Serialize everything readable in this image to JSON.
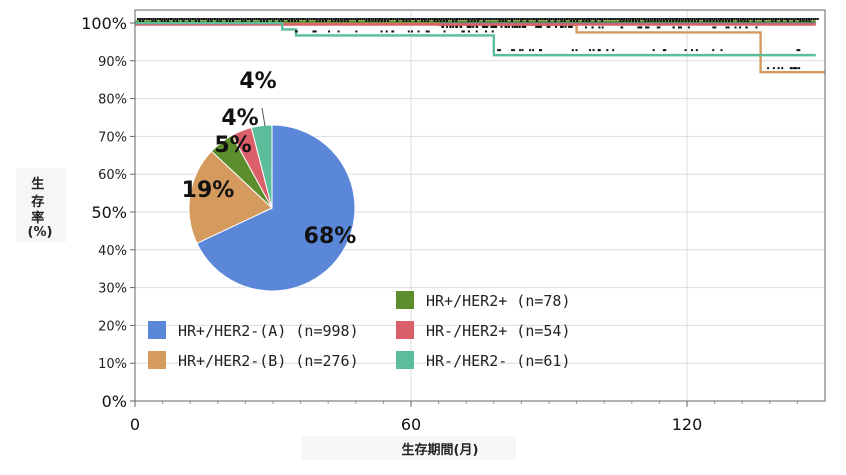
{
  "chart_data": [
    {
      "type": "line",
      "title": "",
      "xlabel": "生存期間(月)",
      "ylabel": "生存率(%)",
      "xlim": [
        0,
        150
      ],
      "ylim": [
        0,
        100
      ],
      "x_ticks": [
        0,
        60,
        120
      ],
      "y_ticks": [
        {
          "value": 0,
          "label": "0%"
        },
        {
          "value": 10,
          "label": "10%"
        },
        {
          "value": 20,
          "label": "20%"
        },
        {
          "value": 30,
          "label": "30%"
        },
        {
          "value": 40,
          "label": "40%"
        },
        {
          "value": 50,
          "label": "50%"
        },
        {
          "value": 60,
          "label": "60%"
        },
        {
          "value": 70,
          "label": "70%"
        },
        {
          "value": 80,
          "label": "80%"
        },
        {
          "value": 90,
          "label": "90%"
        },
        {
          "value": 100,
          "label": "100%"
        }
      ],
      "grid": true,
      "series": [
        {
          "name": "HR+/HER2-(A) (n=998)",
          "color": "#5b87d8",
          "steps": [
            [
              0,
              100
            ],
            [
              148,
              100
            ]
          ]
        },
        {
          "name": "HR+/HER2-(B) (n=276)",
          "color": "#d49a5e",
          "steps": [
            [
              0,
              100
            ],
            [
              66,
              100
            ],
            [
              66,
              99.5
            ],
            [
              96,
              99.5
            ],
            [
              96,
              97.5
            ],
            [
              136,
              97.5
            ],
            [
              136,
              87
            ],
            [
              150,
              87
            ]
          ]
        },
        {
          "name": "HR+/HER2+ (n=78)",
          "color": "#5d8e2e",
          "steps": [
            [
              0,
              100
            ],
            [
              148,
              100
            ]
          ]
        },
        {
          "name": "HR-/HER2+ (n=54)",
          "color": "#d9606a",
          "steps": [
            [
              0,
              100
            ],
            [
              148,
              100
            ]
          ]
        },
        {
          "name": "HR-/HER2- (n=61)",
          "color": "#5bbd99",
          "steps": [
            [
              0,
              100
            ],
            [
              32,
              100
            ],
            [
              32,
              98.3
            ],
            [
              35,
              98.3
            ],
            [
              35,
              96.7
            ],
            [
              78,
              96.7
            ],
            [
              78,
              91.5
            ],
            [
              148,
              91.5
            ]
          ]
        }
      ]
    },
    {
      "type": "pie",
      "slices": [
        {
          "label": "68%",
          "value": 68,
          "color": "#5b87d8"
        },
        {
          "label": "19%",
          "value": 19,
          "color": "#d49a5e"
        },
        {
          "label": "5%",
          "value": 5,
          "color": "#5d8e2e"
        },
        {
          "label": "4%",
          "value": 4,
          "color": "#d9606a"
        },
        {
          "label": "4%",
          "value": 4,
          "color": "#5bbd99"
        }
      ],
      "legend": [
        {
          "label": "HR+/HER2-(A) (n=998)",
          "color": "#5b87d8"
        },
        {
          "label": "HR+/HER2-(B) (n=276)",
          "color": "#d49a5e"
        },
        {
          "label": "HR+/HER2+ (n=78)",
          "color": "#5d8e2e"
        },
        {
          "label": "HR-/HER2+ (n=54)",
          "color": "#d9606a"
        },
        {
          "label": "HR-/HER2- (n=61)",
          "color": "#5bbd99"
        }
      ]
    }
  ]
}
